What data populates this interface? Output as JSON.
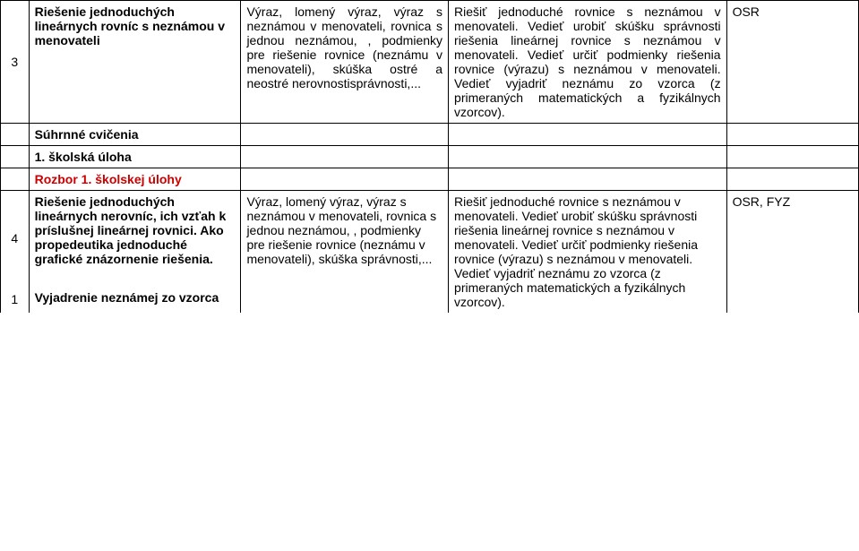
{
  "row1": {
    "num": "3",
    "topic": "Riešenie jednoduchých lineárnych rovníc s neznámou v menovateli",
    "content": "Výraz, lomený výraz, výraz s neznámou v menovateli, rovnica s jednou neznámou, , podmienky pre riešenie rovnice (neznámu v menovateli), skúška ostré a neostré nerovnostisprávnosti,...",
    "goal": "Riešiť jednoduché rovnice s neznámou v menovateli. Vedieť urobiť skúšku správnosti riešenia lineárnej rovnice s neznámou v menovateli. Vedieť určiť podmienky riešenia rovnice (výrazu) s neznámou v menovateli. Vedieť vyjadriť neznámu zo vzorca (z primeraných matematických a fyzikálnych vzorcov).",
    "note": "OSR"
  },
  "row2": {
    "topic": "Súhrnné cvičenia"
  },
  "row3": {
    "topic": "1. školská úloha"
  },
  "row4": {
    "topic": "Rozbor 1. školskej úlohy"
  },
  "row5": {
    "num": "4",
    "topic": "Riešenie jednoduchých lineárnych  nerovníc, ich vzťah k príslušnej lineárnej rovnici. Ako propedeutika jednoduché grafické znázornenie riešenia.",
    "content": "Výraz, lomený výraz, výraz s neznámou v menovateli, rovnica s jednou neznámou, , podmienky pre riešenie rovnice (neznámu v menovateli), skúška správnosti,...",
    "goal": "Riešiť jednoduché rovnice s neznámou v menovateli. Vedieť urobiť skúšku správnosti riešenia lineárnej rovnice s neznámou v menovateli. Vedieť určiť podmienky riešenia  rovnice (výrazu) s neznámou v menovateli. Vedieť vyjadriť neznámu zo vzorca (z primeraných matematických a fyzikálnych vzorcov).",
    "note": "OSR, FYZ"
  },
  "row6": {
    "num": "1",
    "topic": "Vyjadrenie neznámej zo vzorca"
  }
}
